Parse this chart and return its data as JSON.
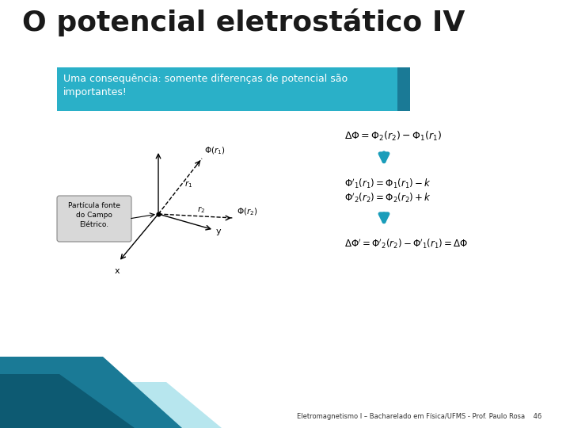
{
  "title": "O potencial eletrostático IV",
  "title_color": "#1a1a1a",
  "title_fontsize": 26,
  "bg_color": "#ffffff",
  "subtitle_text": "Uma consequência: somente diferenças de potencial são\nimportantes!",
  "subtitle_text_color": "#ffffff",
  "subtitle_fontsize": 9,
  "footer_text": "Eletromagnetismo I – Bacharelado em Física/UFMS - Prof. Paulo Rosa    46",
  "footer_color": "#333333",
  "footer_fontsize": 6,
  "eq1": "$\\Delta\\Phi = \\Phi_2(r_2) - \\Phi_1(r_1)$",
  "eq2": "$\\Phi'_1(r_1) = \\Phi_1(r_1) - k$",
  "eq3": "$\\Phi'_2(r_2) = \\Phi_2(r_2) + k$",
  "eq4": "$\\Delta\\Phi' = \\Phi'_2(r_2) - \\Phi'_1(r_1) = \\Delta\\Phi$",
  "eq_fontsize": 8.5,
  "teal_color": "#1a9dba",
  "box_teal": "#2ab0c8",
  "box_dark": "#1a7a96",
  "deco1": "#1a7a96",
  "deco2": "#0d5a72",
  "deco3": "#60c8da",
  "particle_box_color": "#d8d8d8",
  "particle_box_edge": "#888888"
}
